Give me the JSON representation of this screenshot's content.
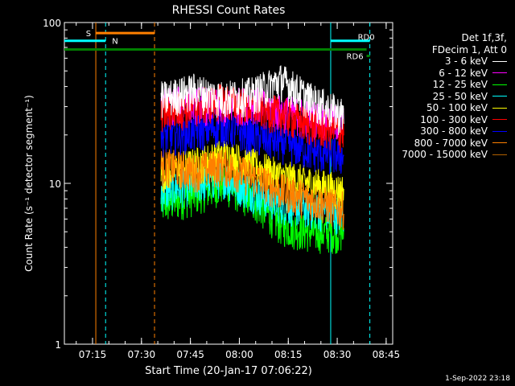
{
  "chart_data": {
    "type": "line",
    "title": "RHESSI Count Rates",
    "xlabel": "Start Time (20-Jan-17 07:06:22)",
    "ylabel": "Count Rate (s⁻¹ detector segment⁻¹)",
    "yscale": "log",
    "ylim": [
      1,
      100
    ],
    "xlim_minutes": [
      "07:06:22",
      "08:47:00"
    ],
    "x_ticks": [
      "07:15",
      "07:30",
      "07:45",
      "08:00",
      "08:15",
      "08:30",
      "08:45"
    ],
    "y_ticks": [
      "1",
      "10",
      "100"
    ],
    "data_window": [
      "07:36",
      "08:32"
    ],
    "legend_header": [
      "Det 1f,3f,",
      "FDecim 1, Att 0"
    ],
    "series": [
      {
        "name": "3 - 6 keV",
        "color": "#ffffff",
        "level": [
          34,
          38,
          34,
          36,
          44,
          33,
          27
        ]
      },
      {
        "name": "6 - 12 keV",
        "color": "#ff00ff",
        "level": [
          31,
          32,
          30,
          32,
          28,
          26,
          24
        ]
      },
      {
        "name": "12 - 25 keV",
        "color": "#00ff00",
        "level": [
          7.5,
          8.5,
          10,
          8,
          5.5,
          5,
          5
        ]
      },
      {
        "name": "25 - 50 keV",
        "color": "#00ffff",
        "level": [
          9,
          10,
          11,
          9,
          7.5,
          7,
          6.5
        ]
      },
      {
        "name": "50 - 100 keV",
        "color": "#ffff00",
        "level": [
          12,
          13,
          15,
          13,
          11,
          10,
          9
        ]
      },
      {
        "name": "100 - 300 keV",
        "color": "#ff0000",
        "level": [
          28,
          30,
          33,
          30,
          27,
          23,
          21
        ]
      },
      {
        "name": "300 - 800 keV",
        "color": "#0000ff",
        "level": [
          20,
          21,
          23,
          20,
          18,
          16,
          15
        ]
      },
      {
        "name": "800 - 7000 keV",
        "color": "#ff8000",
        "level": [
          13,
          12,
          13,
          11,
          9,
          8,
          7
        ]
      },
      {
        "name": "7000 - 15000 keV",
        "color": "#b06000",
        "level": [
          null,
          null,
          null,
          null,
          null,
          null,
          null
        ]
      }
    ],
    "level_times": [
      "07:37",
      "07:46",
      "07:55",
      "08:04",
      "08:13",
      "08:22",
      "08:31"
    ],
    "annotations": [
      {
        "label": "S",
        "color": "#ff8000",
        "start": "07:16",
        "end": "07:34"
      },
      {
        "label": "N",
        "color": "#00ffff",
        "start": "07:06:22",
        "end": "07:19"
      },
      {
        "label": "RD0",
        "color": "#00ffff",
        "start": "08:28",
        "end": "08:40"
      },
      {
        "label": "RD6",
        "color": "#008000",
        "start": "08:39",
        "end": "08:40"
      }
    ],
    "green_bar": {
      "color": "#008000",
      "level": 68
    },
    "vlines": [
      {
        "time": "07:16",
        "color": "#ff8000",
        "style": "solid"
      },
      {
        "time": "07:19",
        "color": "#00ffff",
        "style": "dashed"
      },
      {
        "time": "07:34",
        "color": "#ff8000",
        "style": "dashed"
      },
      {
        "time": "08:28",
        "color": "#00ffff",
        "style": "solid"
      },
      {
        "time": "08:40",
        "color": "#00ffff",
        "style": "dashed"
      }
    ]
  },
  "footer_timestamp": "1-Sep-2022 23:18"
}
